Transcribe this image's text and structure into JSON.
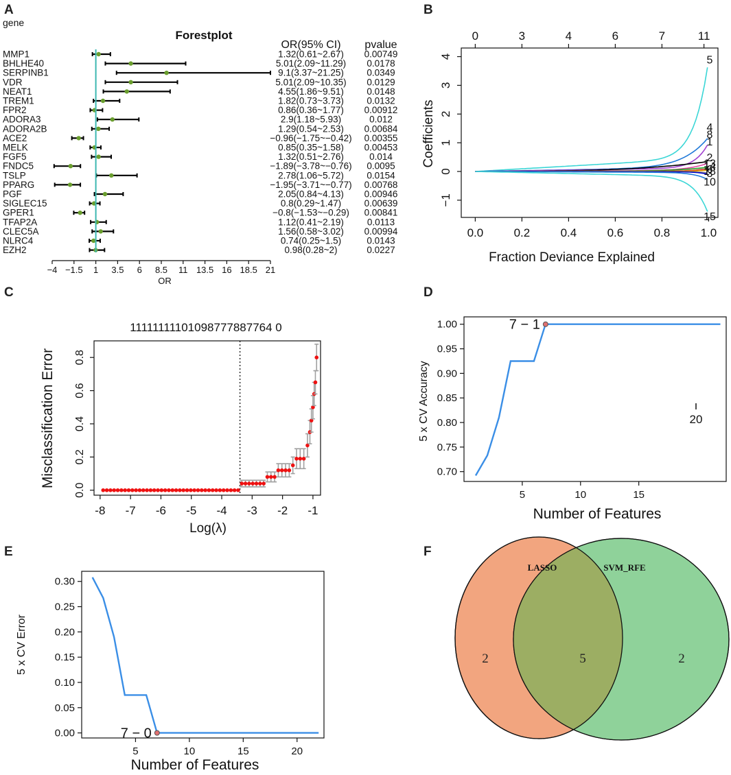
{
  "panel_letters": [
    "A",
    "B",
    "C",
    "D",
    "E",
    "F"
  ],
  "chart_data": [
    {
      "id": "A",
      "type": "forest",
      "title": "Forestplot",
      "col_gene": "gene",
      "col_or": "OR(95% CI)",
      "col_p": "pvalue",
      "xlabel": "OR",
      "xlim": [
        -4,
        21
      ],
      "xticks": [
        "-4",
        "-1.5",
        "1",
        "3.5",
        "6",
        "8.5",
        "11",
        "13.5",
        "16",
        "18.5",
        "21"
      ],
      "xtick_values": [
        -4,
        -1.5,
        1,
        3.5,
        6,
        8.5,
        11,
        13.5,
        16,
        18.5,
        21
      ],
      "reference_line": 1,
      "rows": [
        {
          "gene": "MMP1",
          "or": 1.32,
          "lo": 0.61,
          "hi": 2.67,
          "text": "1.32(0.61~2.67)",
          "p": "0.00749"
        },
        {
          "gene": "BHLHE40",
          "or": 5.01,
          "lo": 2.09,
          "hi": 11.29,
          "text": "5.01(2.09~11.29)",
          "p": "0.0178"
        },
        {
          "gene": "SERPINB1",
          "or": 9.1,
          "lo": 3.37,
          "hi": 21.25,
          "text": "9.1(3.37~21.25)",
          "p": "0.0349"
        },
        {
          "gene": "VDR",
          "or": 5.01,
          "lo": 2.09,
          "hi": 10.35,
          "text": "5.01(2.09~10.35)",
          "p": "0.0129"
        },
        {
          "gene": "NEAT1",
          "or": 4.55,
          "lo": 1.86,
          "hi": 9.51,
          "text": "4.55(1.86~9.51)",
          "p": "0.0148"
        },
        {
          "gene": "TREM1",
          "or": 1.82,
          "lo": 0.73,
          "hi": 3.73,
          "text": "1.82(0.73~3.73)",
          "p": "0.0132"
        },
        {
          "gene": "FPR2",
          "or": 0.86,
          "lo": 0.36,
          "hi": 1.77,
          "text": "0.86(0.36~1.77)",
          "p": "0.00912"
        },
        {
          "gene": "ADORA3",
          "or": 2.9,
          "lo": 1.18,
          "hi": 5.93,
          "text": "2.9(1.18~5.93)",
          "p": "0.012"
        },
        {
          "gene": "ADORA2B",
          "or": 1.29,
          "lo": 0.54,
          "hi": 2.53,
          "text": "1.29(0.54~2.53)",
          "p": "0.00684"
        },
        {
          "gene": "ACE2",
          "or": -0.96,
          "lo": -1.75,
          "hi": -0.42,
          "text": "−0.96(−1.75~−0.42)",
          "p": "0.00355"
        },
        {
          "gene": "MELK",
          "or": 0.85,
          "lo": 0.35,
          "hi": 1.58,
          "text": "0.85(0.35~1.58)",
          "p": "0.00453"
        },
        {
          "gene": "FGF5",
          "or": 1.32,
          "lo": 0.51,
          "hi": 2.76,
          "text": "1.32(0.51~2.76)",
          "p": "0.014"
        },
        {
          "gene": "FNDC5",
          "or": -1.89,
          "lo": -3.78,
          "hi": -0.76,
          "text": "−1.89(−3.78~−0.76)",
          "p": "0.0095"
        },
        {
          "gene": "TSLP",
          "or": 2.78,
          "lo": 1.06,
          "hi": 5.72,
          "text": "2.78(1.06~5.72)",
          "p": "0.0154"
        },
        {
          "gene": "PPARG",
          "or": -1.95,
          "lo": -3.71,
          "hi": -0.77,
          "text": "−1.95(−3.71~−0.77)",
          "p": "0.00768"
        },
        {
          "gene": "PGF",
          "or": 2.05,
          "lo": 0.84,
          "hi": 4.13,
          "text": "2.05(0.84~4.13)",
          "p": "0.00946"
        },
        {
          "gene": "SIGLEC15",
          "or": 0.8,
          "lo": 0.29,
          "hi": 1.47,
          "text": "0.8(0.29~1.47)",
          "p": "0.00639"
        },
        {
          "gene": "GPER1",
          "or": -0.8,
          "lo": -1.53,
          "hi": -0.29,
          "text": "−0.8(−1.53~−0.29)",
          "p": "0.00841"
        },
        {
          "gene": "TFAP2A",
          "or": 1.12,
          "lo": 0.41,
          "hi": 2.19,
          "text": "1.12(0.41~2.19)",
          "p": "0.0113"
        },
        {
          "gene": "CLEC5A",
          "or": 1.56,
          "lo": 0.58,
          "hi": 3.02,
          "text": "1.56(0.58~3.02)",
          "p": "0.00994"
        },
        {
          "gene": "NLRC4",
          "or": 0.74,
          "lo": 0.25,
          "hi": 1.5,
          "text": "0.74(0.25~1.5)",
          "p": "0.0143"
        },
        {
          "gene": "EZH2",
          "or": 0.98,
          "lo": 0.28,
          "hi": 2,
          "text": "0.98(0.28~2)",
          "p": "0.0227"
        }
      ],
      "colors": {
        "point": "#6a9e2e",
        "ci": "#000000",
        "ref": "#3cb8b0"
      }
    },
    {
      "id": "B",
      "type": "line",
      "xlabel": "Fraction Deviance Explained",
      "ylabel": "Coefficients",
      "xlim": [
        0,
        1.0
      ],
      "ylim": [
        -1.6,
        4.3
      ],
      "xticks": [
        "0.0",
        "0.2",
        "0.4",
        "0.6",
        "0.8",
        "1.0"
      ],
      "xtick_values": [
        0,
        0.2,
        0.4,
        0.6,
        0.8,
        1.0
      ],
      "yticks": [
        "−1",
        "0",
        "1",
        "2",
        "3",
        "4"
      ],
      "ytick_values": [
        -1,
        0,
        1,
        2,
        3,
        4
      ],
      "top_ticks": [
        "0",
        "3",
        "4",
        "6",
        "7",
        "11"
      ],
      "top_tick_values": [
        0,
        0.2,
        0.4,
        0.6,
        0.8,
        0.98
      ],
      "right_labels": [
        "5",
        "4",
        "8",
        "1",
        "2",
        "13",
        "14",
        "6",
        "18",
        "3",
        "10",
        "15"
      ],
      "right_label_values": [
        3.9,
        1.55,
        1.3,
        1.05,
        0.5,
        0.3,
        0.2,
        0.1,
        0.02,
        -0.05,
        -0.35,
        -1.55
      ],
      "series": [
        {
          "name": "5",
          "color": "#3ad6d6",
          "endpoint": 3.9,
          "shape": 5.5
        },
        {
          "name": "4",
          "color": "#1e78d8",
          "endpoint": 1.2,
          "shape": 3.2
        },
        {
          "name": "8",
          "color": "#a040d0",
          "endpoint": 1.0,
          "shape": 6.0
        },
        {
          "name": "1",
          "color": "#000000",
          "endpoint": 0.35,
          "shape": 1.2
        },
        {
          "name": "2",
          "color": "#e040a0",
          "endpoint": 0.3,
          "shape": 4.0
        },
        {
          "name": "13",
          "color": "#22a022",
          "endpoint": 0.15,
          "shape": 2.5
        },
        {
          "name": "14",
          "color": "#d03030",
          "endpoint": 0.1,
          "shape": 5.0
        },
        {
          "name": "6",
          "color": "#e0a000",
          "endpoint": 0.05,
          "shape": 7.0
        },
        {
          "name": "18",
          "color": "#888888",
          "endpoint": -0.05,
          "shape": 6.5
        },
        {
          "name": "3",
          "color": "#0000c0",
          "endpoint": -0.1,
          "shape": 8.0
        },
        {
          "name": "10",
          "color": "#1e78d8",
          "endpoint": -0.3,
          "shape": 6.0
        },
        {
          "name": "15",
          "color": "#3ad6d6",
          "endpoint": -1.5,
          "shape": 5.5
        }
      ]
    },
    {
      "id": "C",
      "type": "errorbar",
      "xlabel": "Log(λ)",
      "ylabel": "Misclassification Error",
      "xlim": [
        -8.2,
        -0.75
      ],
      "ylim": [
        -0.03,
        0.9
      ],
      "xticks": [
        "-8",
        "-7",
        "-6",
        "-5",
        "-4",
        "-3",
        "-2",
        "-1"
      ],
      "xtick_values": [
        -8,
        -7,
        -6,
        -5,
        -4,
        -3,
        -2,
        -1
      ],
      "yticks": [
        "0.0",
        "0.2",
        "0.4",
        "0.6",
        "0.8"
      ],
      "ytick_values": [
        0,
        0.2,
        0.4,
        0.6,
        0.8
      ],
      "top_label": "11111111101098777887764 0",
      "vline": -3.4,
      "points": [
        {
          "x": -7.9,
          "y": 0
        },
        {
          "x": -7.78,
          "y": 0
        },
        {
          "x": -7.66,
          "y": 0
        },
        {
          "x": -7.54,
          "y": 0
        },
        {
          "x": -7.42,
          "y": 0
        },
        {
          "x": -7.3,
          "y": 0
        },
        {
          "x": -7.18,
          "y": 0
        },
        {
          "x": -7.06,
          "y": 0
        },
        {
          "x": -6.94,
          "y": 0
        },
        {
          "x": -6.82,
          "y": 0
        },
        {
          "x": -6.7,
          "y": 0
        },
        {
          "x": -6.58,
          "y": 0
        },
        {
          "x": -6.46,
          "y": 0
        },
        {
          "x": -6.34,
          "y": 0
        },
        {
          "x": -6.22,
          "y": 0
        },
        {
          "x": -6.1,
          "y": 0
        },
        {
          "x": -5.98,
          "y": 0
        },
        {
          "x": -5.86,
          "y": 0
        },
        {
          "x": -5.74,
          "y": 0
        },
        {
          "x": -5.62,
          "y": 0
        },
        {
          "x": -5.5,
          "y": 0
        },
        {
          "x": -5.38,
          "y": 0
        },
        {
          "x": -5.26,
          "y": 0
        },
        {
          "x": -5.14,
          "y": 0
        },
        {
          "x": -5.02,
          "y": 0
        },
        {
          "x": -4.9,
          "y": 0
        },
        {
          "x": -4.78,
          "y": 0
        },
        {
          "x": -4.66,
          "y": 0
        },
        {
          "x": -4.54,
          "y": 0
        },
        {
          "x": -4.42,
          "y": 0
        },
        {
          "x": -4.3,
          "y": 0
        },
        {
          "x": -4.18,
          "y": 0
        },
        {
          "x": -4.06,
          "y": 0
        },
        {
          "x": -3.94,
          "y": 0
        },
        {
          "x": -3.82,
          "y": 0
        },
        {
          "x": -3.7,
          "y": 0
        },
        {
          "x": -3.58,
          "y": 0
        },
        {
          "x": -3.46,
          "y": 0
        },
        {
          "x": -3.34,
          "y": 0.04,
          "err": 0.02
        },
        {
          "x": -3.22,
          "y": 0.04,
          "err": 0.02
        },
        {
          "x": -3.1,
          "y": 0.04,
          "err": 0.02
        },
        {
          "x": -2.98,
          "y": 0.04,
          "err": 0.02
        },
        {
          "x": -2.86,
          "y": 0.04,
          "err": 0.02
        },
        {
          "x": -2.74,
          "y": 0.04,
          "err": 0.02
        },
        {
          "x": -2.62,
          "y": 0.04,
          "err": 0.02
        },
        {
          "x": -2.5,
          "y": 0.08,
          "err": 0.03
        },
        {
          "x": -2.38,
          "y": 0.08,
          "err": 0.03
        },
        {
          "x": -2.26,
          "y": 0.08,
          "err": 0.03
        },
        {
          "x": -2.14,
          "y": 0.12,
          "err": 0.04
        },
        {
          "x": -2.02,
          "y": 0.12,
          "err": 0.04
        },
        {
          "x": -1.9,
          "y": 0.12,
          "err": 0.04
        },
        {
          "x": -1.78,
          "y": 0.12,
          "err": 0.04
        },
        {
          "x": -1.66,
          "y": 0.15,
          "err": 0.05
        },
        {
          "x": -1.54,
          "y": 0.19,
          "err": 0.06
        },
        {
          "x": -1.42,
          "y": 0.19,
          "err": 0.06
        },
        {
          "x": -1.3,
          "y": 0.19,
          "err": 0.06
        },
        {
          "x": -1.18,
          "y": 0.27,
          "err": 0.07
        },
        {
          "x": -1.1,
          "y": 0.35,
          "err": 0.07
        },
        {
          "x": -1.05,
          "y": 0.42,
          "err": 0.07
        },
        {
          "x": -1.0,
          "y": 0.5,
          "err": 0.07
        },
        {
          "x": -0.96,
          "y": 0.58,
          "err": 0.07
        },
        {
          "x": -0.92,
          "y": 0.65,
          "err": 0.07
        },
        {
          "x": -0.88,
          "y": 0.8,
          "err": 0.08
        }
      ],
      "colors": {
        "point": "#ee1111",
        "err": "#a0a0a0"
      }
    },
    {
      "id": "D",
      "type": "line",
      "xlabel": "Number of Features",
      "ylabel": "5 x CV Accuracy",
      "xlim": [
        0,
        22.5
      ],
      "ylim": [
        0.68,
        1.015
      ],
      "xticks": [
        "5",
        "10",
        "15"
      ],
      "xtick_values": [
        5,
        10,
        15
      ],
      "yticks": [
        "0.70",
        "0.75",
        "0.80",
        "0.85",
        "0.90",
        "0.95",
        "1.00"
      ],
      "ytick_values": [
        0.7,
        0.75,
        0.8,
        0.85,
        0.9,
        0.95,
        1.0
      ],
      "x": [
        1,
        2,
        3,
        4,
        5,
        6,
        7,
        8,
        9,
        10,
        11,
        12,
        13,
        14,
        15,
        16,
        17,
        18,
        19,
        20,
        21,
        22
      ],
      "y": [
        0.692,
        0.733,
        0.81,
        0.925,
        0.925,
        0.925,
        1.0,
        1.0,
        1.0,
        1.0,
        1.0,
        1.0,
        1.0,
        1.0,
        1.0,
        1.0,
        1.0,
        1.0,
        1.0,
        1.0,
        1.0,
        1.0
      ],
      "highlight": {
        "x": 7,
        "y": 1.0,
        "label": "7 − 1"
      },
      "stray_label": "20",
      "colors": {
        "line": "#3a8ee6",
        "label": "#dd1111"
      }
    },
    {
      "id": "E",
      "type": "line",
      "xlabel": "Number of Features",
      "ylabel": "5 x CV Error",
      "xlim": [
        0,
        22.5
      ],
      "ylim": [
        -0.01,
        0.32
      ],
      "xticks": [
        "5",
        "10",
        "15",
        "20"
      ],
      "xtick_values": [
        5,
        10,
        15,
        20
      ],
      "yticks": [
        "0.00",
        "0.05",
        "0.10",
        "0.15",
        "0.20",
        "0.25",
        "0.30"
      ],
      "ytick_values": [
        0,
        0.05,
        0.1,
        0.15,
        0.2,
        0.25,
        0.3
      ],
      "x": [
        1,
        2,
        3,
        4,
        5,
        6,
        7,
        8,
        9,
        10,
        11,
        12,
        13,
        14,
        15,
        16,
        17,
        18,
        19,
        20,
        21,
        22
      ],
      "y": [
        0.308,
        0.267,
        0.19,
        0.075,
        0.075,
        0.075,
        0.0,
        0.0,
        0.0,
        0.0,
        0.0,
        0.0,
        0.0,
        0.0,
        0.0,
        0.0,
        0.0,
        0.0,
        0.0,
        0.0,
        0.0,
        0.0
      ],
      "highlight": {
        "x": 7,
        "y": 0.0,
        "label": "7 − 0"
      },
      "colors": {
        "line": "#3a8ee6",
        "label": "#dd1111"
      }
    },
    {
      "id": "F",
      "type": "venn",
      "sets": [
        "LASSO",
        "SVM_RFE"
      ],
      "counts": {
        "left_only": "2",
        "both": "5",
        "right_only": "2"
      },
      "colors": {
        "left": "#f2a57f",
        "right": "#8fd29a",
        "both": "#9cae63"
      }
    }
  ]
}
